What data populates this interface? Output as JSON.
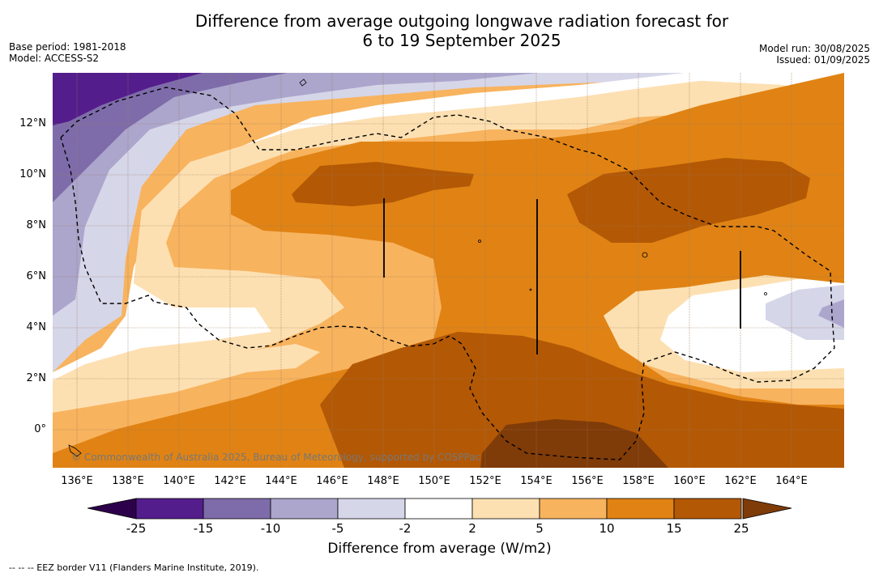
{
  "title_line1": "Difference from average outgoing longwave radiation forecast for",
  "title_line2": "6 to 19 September 2025",
  "base_period": "Base period: 1981-2018",
  "model": "Model: ACCESS-S2",
  "model_run": "Model run: 30/08/2025",
  "issued": "Issued: 01/09/2025",
  "copyright": "© Commonwealth of Australia 2025, Bureau of Meteorology, supported by COSPPac",
  "footnote": "--  --  -- EEZ border V11 (Flanders Marine Institute, 2019).",
  "map": {
    "lon_range": [
      135,
      166
    ],
    "lat_range": [
      -1.5,
      14
    ],
    "lat_labels": [
      "12°N",
      "10°N",
      "8°N",
      "6°N",
      "4°N",
      "2°N",
      "0°"
    ],
    "lon_labels": [
      "136°E",
      "138°E",
      "140°E",
      "142°E",
      "144°E",
      "146°E",
      "148°E",
      "150°E",
      "152°E",
      "154°E",
      "156°E",
      "158°E",
      "160°E",
      "162°E",
      "164°E"
    ]
  },
  "colorbar": {
    "title": "Difference from average (W/m2)",
    "ticks": [
      "-25",
      "-15",
      "-10",
      "-5",
      "-2",
      "2",
      "5",
      "10",
      "15",
      "25"
    ],
    "colors": [
      "#541d8c",
      "#7e6caa",
      "#aca6cd",
      "#d6d6e9",
      "#ffffff",
      "#fde0b2",
      "#f8b35e",
      "#e08314",
      "#b35805",
      "#7f3b08"
    ],
    "under_color": "#2d004b",
    "over_color": "#7f3b08"
  }
}
